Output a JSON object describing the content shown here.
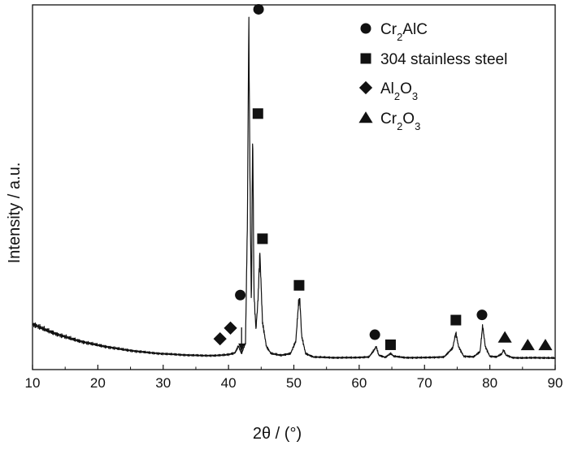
{
  "chart_data": {
    "type": "line",
    "title": "",
    "xlabel": "2θ / (°)",
    "ylabel": "Intensity / a.u.",
    "xlim": [
      10,
      90
    ],
    "x_ticks": [
      10,
      20,
      30,
      40,
      50,
      60,
      70,
      80,
      90
    ],
    "y_ticks_shown": false,
    "grid": false,
    "legend_position": "top-right",
    "legend": [
      {
        "phase": "Cr2AlC",
        "symbol": "circle",
        "label_parts": [
          [
            "Cr",
            ""
          ],
          [
            "2",
            "sub"
          ],
          [
            "AlC",
            ""
          ]
        ]
      },
      {
        "phase": "304 stainless steel",
        "symbol": "square",
        "label_parts": [
          [
            "304 stainless steel",
            ""
          ]
        ]
      },
      {
        "phase": "Al2O3",
        "symbol": "diamond",
        "label_parts": [
          [
            "Al",
            ""
          ],
          [
            "2",
            "sub"
          ],
          [
            "O",
            ""
          ],
          [
            "3",
            "sub"
          ]
        ]
      },
      {
        "phase": "Cr2O3",
        "symbol": "triangle",
        "label_parts": [
          [
            "Cr",
            ""
          ],
          [
            "2",
            "sub"
          ],
          [
            "O",
            ""
          ],
          [
            "3",
            "sub"
          ]
        ]
      }
    ],
    "series": [
      {
        "name": "",
        "color": "#111111",
        "x": [
          10,
          12,
          14,
          16,
          18,
          20,
          22,
          24,
          26,
          28,
          30,
          32,
          34,
          36,
          38,
          39,
          40,
          41,
          41.5,
          42,
          42.6,
          42.9,
          43.1,
          43.3,
          43.5,
          43.7,
          43.9,
          44.2,
          44.5,
          44.8,
          45.2,
          45.8,
          46.5,
          48,
          49.5,
          50.3,
          50.7,
          50.9,
          51.2,
          51.8,
          53,
          56,
          59,
          61.5,
          62.3,
          62.6,
          63,
          64,
          64.8,
          65.3,
          67,
          70,
          73,
          74.3,
          74.8,
          75.2,
          76,
          77.5,
          78.5,
          78.9,
          79.3,
          80,
          81,
          81.8,
          82.1,
          82.5,
          83.5,
          85,
          87,
          89,
          90
        ],
        "y": [
          0.115,
          0.098,
          0.084,
          0.072,
          0.062,
          0.054,
          0.047,
          0.041,
          0.036,
          0.032,
          0.029,
          0.027,
          0.025,
          0.024,
          0.024,
          0.025,
          0.027,
          0.032,
          0.052,
          0.03,
          0.06,
          0.42,
          1.0,
          0.5,
          0.16,
          0.68,
          0.2,
          0.1,
          0.18,
          0.32,
          0.12,
          0.05,
          0.03,
          0.025,
          0.03,
          0.065,
          0.17,
          0.19,
          0.08,
          0.03,
          0.02,
          0.018,
          0.018,
          0.02,
          0.04,
          0.05,
          0.025,
          0.019,
          0.03,
          0.022,
          0.018,
          0.018,
          0.02,
          0.045,
          0.09,
          0.05,
          0.022,
          0.02,
          0.035,
          0.11,
          0.05,
          0.022,
          0.02,
          0.028,
          0.04,
          0.025,
          0.018,
          0.017,
          0.018,
          0.017,
          0.017
        ]
      }
    ],
    "peak_markers": [
      {
        "phase": "Cr2AlC",
        "symbol": "circle",
        "x": 44.6,
        "y": 1.02
      },
      {
        "phase": "304 stainless steel",
        "symbol": "square",
        "x": 44.5,
        "y": 0.72
      },
      {
        "phase": "304 stainless steel",
        "symbol": "square",
        "x": 45.2,
        "y": 0.36
      },
      {
        "phase": "304 stainless steel",
        "symbol": "square",
        "x": 50.8,
        "y": 0.226
      },
      {
        "phase": "Cr2AlC",
        "symbol": "circle",
        "x": 41.8,
        "y": 0.198
      },
      {
        "phase": "Al2O3",
        "symbol": "diamond",
        "x": 40.3,
        "y": 0.103
      },
      {
        "phase": "Al2O3",
        "symbol": "diamond",
        "x": 38.7,
        "y": 0.072
      },
      {
        "phase": "Cr2AlC",
        "symbol": "circle",
        "x": 62.4,
        "y": 0.084
      },
      {
        "phase": "304 stainless steel",
        "symbol": "square",
        "x": 64.8,
        "y": 0.055
      },
      {
        "phase": "304 stainless steel",
        "symbol": "square",
        "x": 74.8,
        "y": 0.126
      },
      {
        "phase": "Cr2AlC",
        "symbol": "circle",
        "x": 78.8,
        "y": 0.141
      },
      {
        "phase": "Cr2O3",
        "symbol": "triangle",
        "x": 82.3,
        "y": 0.076
      },
      {
        "phase": "Cr2O3",
        "symbol": "triangle",
        "x": 85.8,
        "y": 0.054
      },
      {
        "phase": "Cr2O3",
        "symbol": "triangle",
        "x": 88.5,
        "y": 0.054
      }
    ],
    "annotations": [
      {
        "type": "arrow",
        "x": 42.0,
        "y_start": 0.105,
        "y_end": 0.04
      }
    ]
  }
}
